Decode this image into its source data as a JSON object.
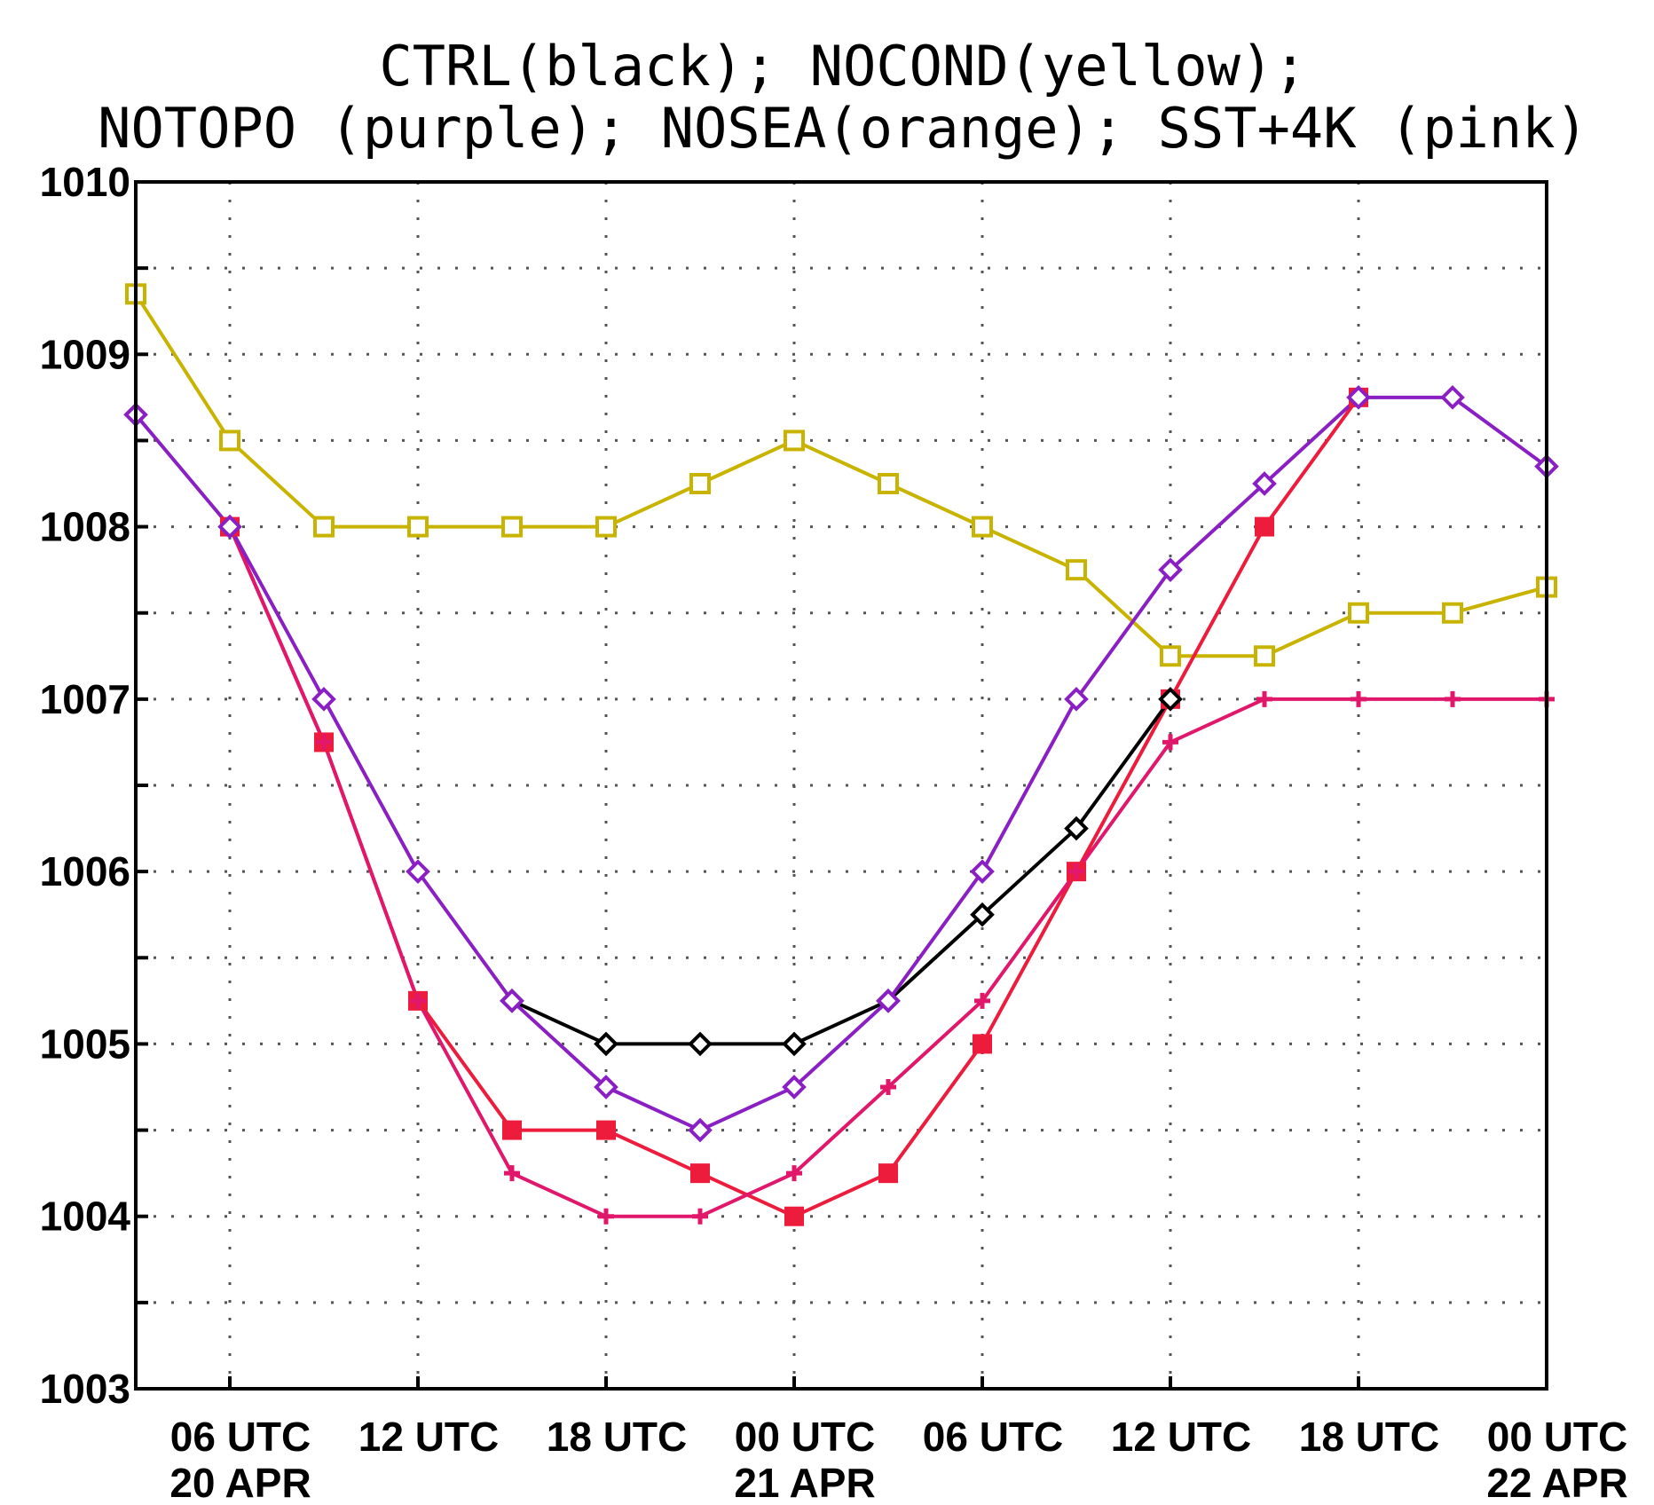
{
  "chart_data": {
    "type": "line",
    "title_lines": [
      "CTRL(black); NOCOND(yellow);",
      "NOTOPO (purple); NOSEA(orange); SST+4K (pink)"
    ],
    "xlabel": "",
    "ylabel": "",
    "ylim": [
      1003,
      1010
    ],
    "xlim": [
      3,
      48
    ],
    "y_ticks": [
      {
        "value": 1003,
        "label": "1003"
      },
      {
        "value": 1004,
        "label": "1004"
      },
      {
        "value": 1005,
        "label": "1005"
      },
      {
        "value": 1006,
        "label": "1006"
      },
      {
        "value": 1007,
        "label": "1007"
      },
      {
        "value": 1008,
        "label": "1008"
      },
      {
        "value": 1009,
        "label": "1009"
      },
      {
        "value": 1010,
        "label": "1010"
      }
    ],
    "x_ticks": [
      {
        "value": 6,
        "label": "06 UTC",
        "sub": "20 APR"
      },
      {
        "value": 12,
        "label": "12 UTC",
        "sub": ""
      },
      {
        "value": 18,
        "label": "18 UTC",
        "sub": ""
      },
      {
        "value": 24,
        "label": "00 UTC",
        "sub": "21 APR"
      },
      {
        "value": 30,
        "label": "06 UTC",
        "sub": ""
      },
      {
        "value": 36,
        "label": "12 UTC",
        "sub": ""
      },
      {
        "value": 42,
        "label": "18 UTC",
        "sub": ""
      },
      {
        "value": 48,
        "label": "00 UTC",
        "sub": "22 APR"
      }
    ],
    "grid": true,
    "series": [
      {
        "name": "NOCOND",
        "color": "#c8b400",
        "marker": "open-square",
        "x": [
          3,
          6,
          9,
          12,
          15,
          18,
          21,
          24,
          27,
          30,
          33,
          36,
          39,
          42,
          45,
          48
        ],
        "values": [
          1009.35,
          1008.5,
          1008.0,
          1008.0,
          1008.0,
          1008.0,
          1008.25,
          1008.5,
          1008.25,
          1008.0,
          1007.75,
          1007.25,
          1007.25,
          1007.5,
          1007.5,
          1007.65
        ]
      },
      {
        "name": "NOSEA",
        "color": "#ee1c3c",
        "marker": "filled-square",
        "x": [
          6,
          9,
          12,
          15,
          18,
          21,
          24,
          27,
          30,
          33,
          36,
          39,
          42
        ],
        "values": [
          1008.0,
          1006.75,
          1005.25,
          1004.5,
          1004.5,
          1004.25,
          1004.0,
          1004.25,
          1005.0,
          1006.0,
          1007.0,
          1008.0,
          1008.75
        ]
      },
      {
        "name": "SST+4K",
        "color": "#e0176a",
        "marker": "plus",
        "x": [
          6,
          9,
          12,
          15,
          18,
          21,
          24,
          27,
          30,
          33,
          36,
          39,
          42,
          45,
          48
        ],
        "values": [
          1008.0,
          1006.75,
          1005.25,
          1004.25,
          1004.0,
          1004.0,
          1004.25,
          1004.75,
          1005.25,
          1006.0,
          1006.75,
          1007.0,
          1007.0,
          1007.0,
          1007.0
        ]
      },
      {
        "name": "CTRL",
        "color": "#000000",
        "marker": "open-diamond",
        "x": [
          15,
          18,
          21,
          24,
          27,
          30,
          33,
          36
        ],
        "values": [
          1005.25,
          1005.0,
          1005.0,
          1005.0,
          1005.25,
          1005.75,
          1006.25,
          1007.0
        ]
      },
      {
        "name": "NOTOPO",
        "color": "#8a1fc4",
        "marker": "open-diamond",
        "x": [
          3,
          6,
          9,
          12,
          15,
          18,
          21,
          24,
          27,
          30,
          33,
          36,
          39,
          42,
          45,
          48
        ],
        "values": [
          1008.65,
          1008.0,
          1007.0,
          1006.0,
          1005.25,
          1004.75,
          1004.5,
          1004.75,
          1005.25,
          1006.0,
          1007.0,
          1007.75,
          1008.25,
          1008.75,
          1008.75,
          1008.35
        ]
      }
    ]
  }
}
